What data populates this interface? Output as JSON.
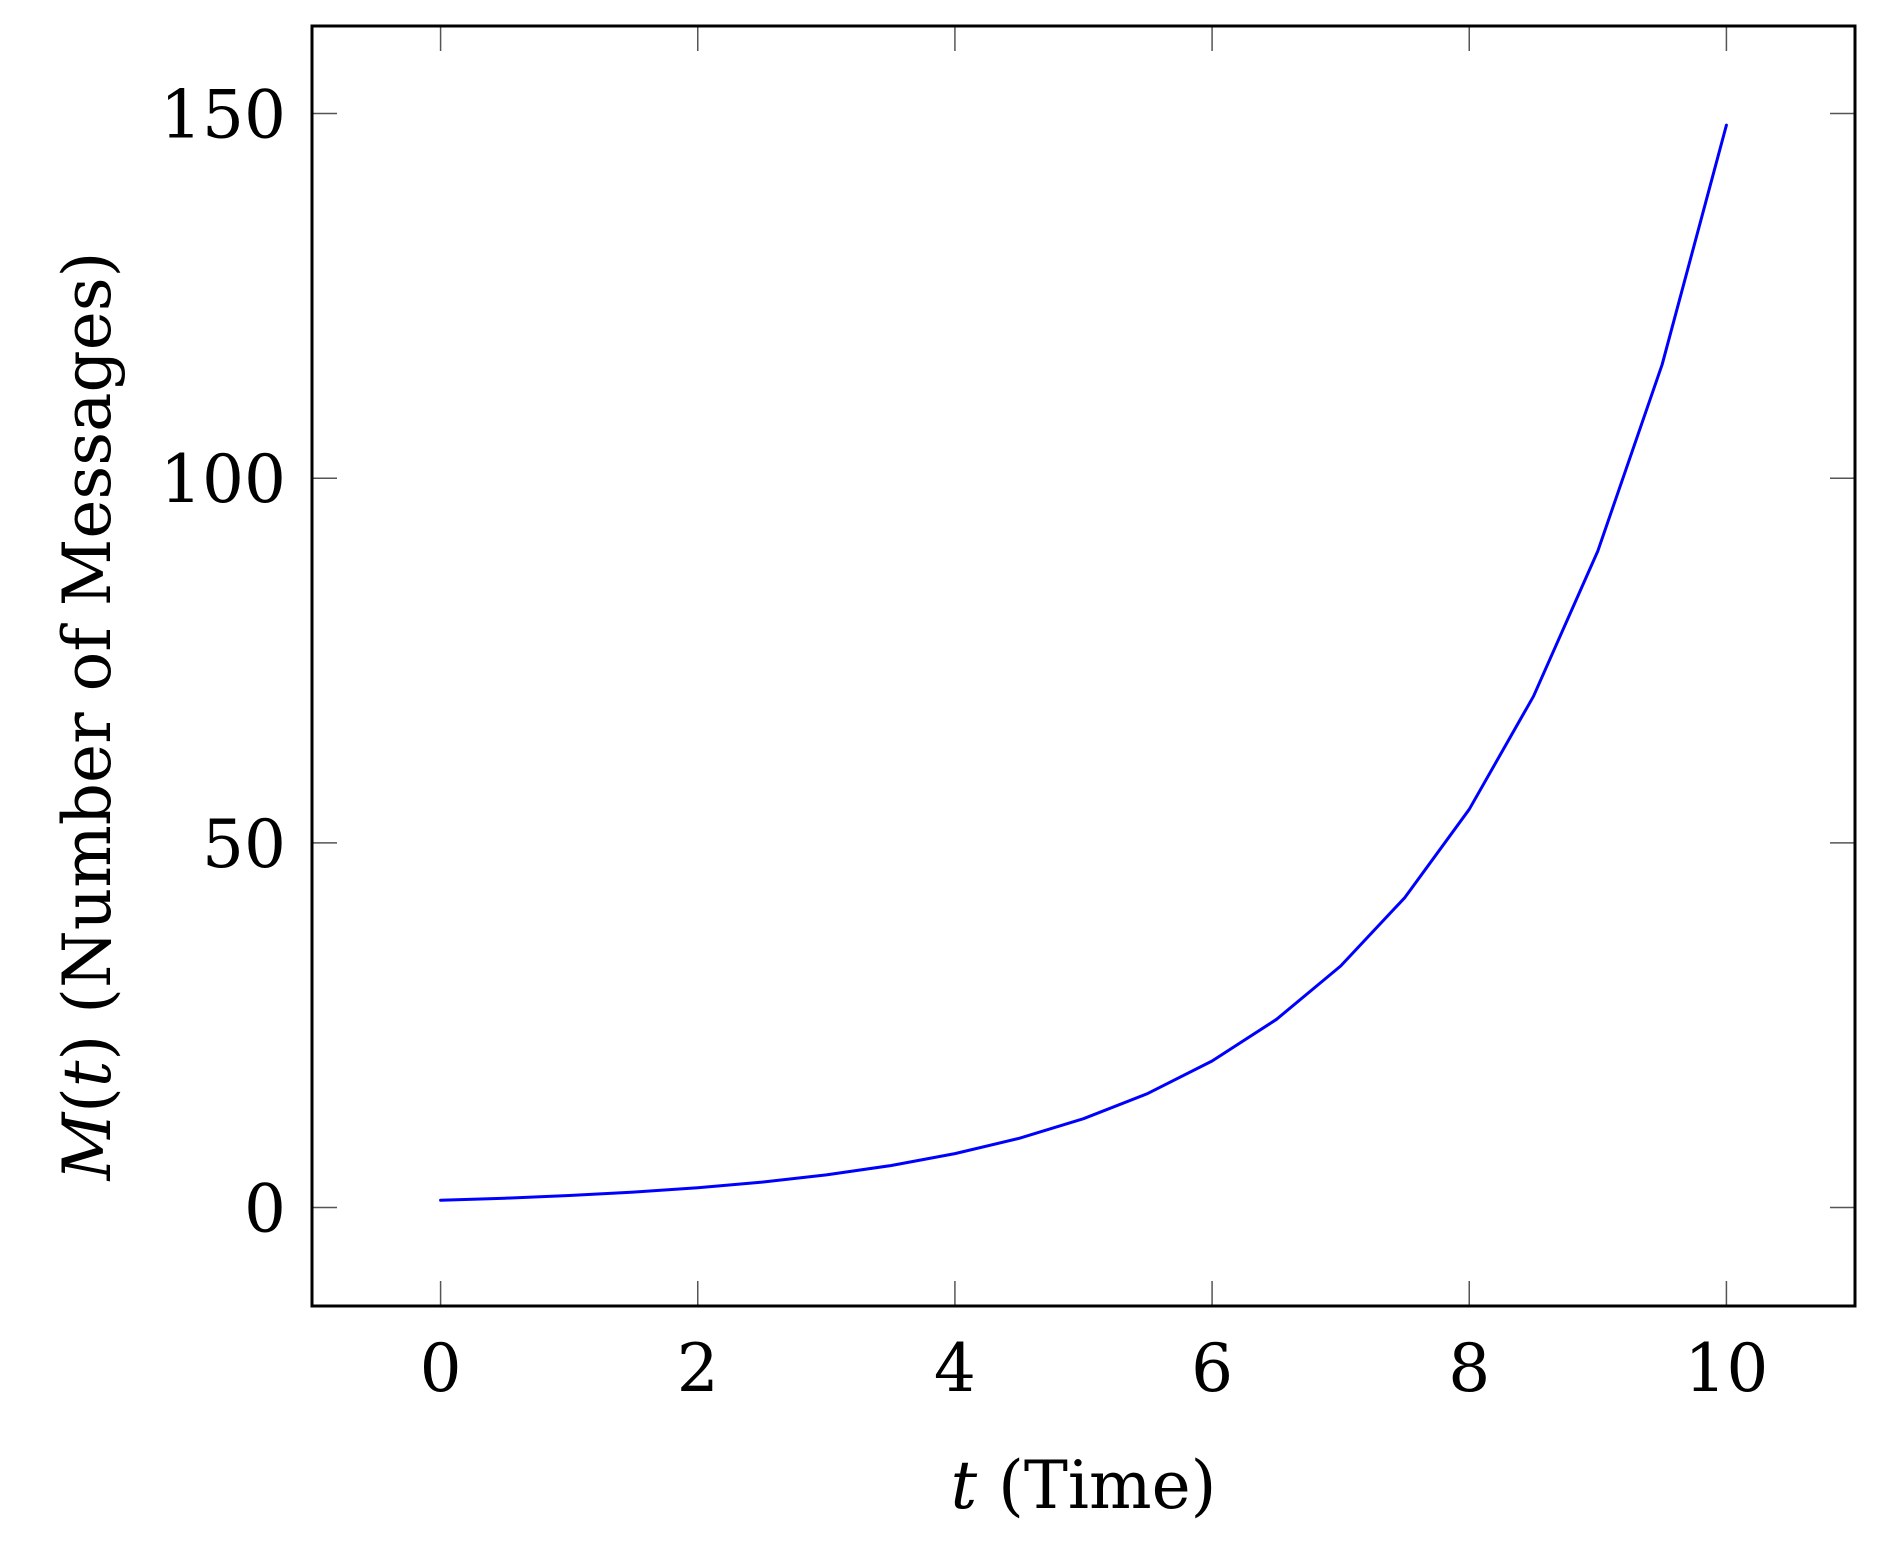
{
  "chart_data": {
    "type": "line",
    "title": "",
    "xlabel": {
      "var": "t",
      "text": " (Time)"
    },
    "ylabel": {
      "var_before": "M",
      "paren_open": "(",
      "var_arg": "t",
      "paren_close": ")",
      "text": " (Number of Messages)"
    },
    "xlim": [
      -1,
      11
    ],
    "ylim": [
      -13.5,
      162
    ],
    "xticks": [
      0,
      2,
      4,
      6,
      8,
      10
    ],
    "yticks": [
      0,
      50,
      100,
      150
    ],
    "grid": false,
    "legend": "none",
    "series": [
      {
        "color": "#0000ff",
        "x": [
          0,
          0.5,
          1,
          1.5,
          2,
          2.5,
          3,
          3.5,
          4,
          4.5,
          5,
          5.5,
          6,
          6.5,
          7,
          7.5,
          8,
          8.5,
          9,
          9.5,
          10
        ],
        "y": [
          1.0,
          1.28,
          1.65,
          2.12,
          2.72,
          3.49,
          4.48,
          5.75,
          7.39,
          9.49,
          12.18,
          15.64,
          20.09,
          25.79,
          33.12,
          42.52,
          54.6,
          70.11,
          90.02,
          115.58,
          148.41
        ]
      }
    ]
  }
}
